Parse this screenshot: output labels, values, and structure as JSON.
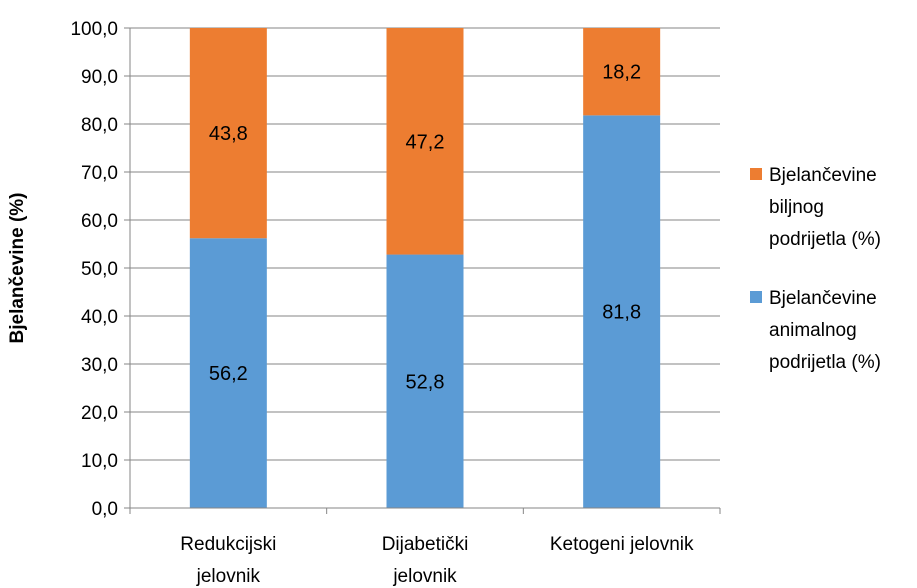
{
  "chart_data": {
    "type": "bar",
    "stacked": true,
    "title": "",
    "xlabel": "",
    "ylabel": "Bjelančevine (%)",
    "ylim": [
      0,
      100
    ],
    "yticks": [
      "0,0",
      "10,0",
      "20,0",
      "30,0",
      "40,0",
      "50,0",
      "60,0",
      "70,0",
      "80,0",
      "90,0",
      "100,0"
    ],
    "grid": true,
    "legend_position": "right",
    "categories": [
      [
        "Redukcijski",
        "jelovnik"
      ],
      [
        "Dijabetički",
        "jelovnik"
      ],
      [
        "Ketogeni jelovnik"
      ]
    ],
    "series": [
      {
        "name": [
          "Bjelančevine",
          "animalnog",
          "podrijetla (%)"
        ],
        "color": "#5B9BD5",
        "values": [
          56.2,
          52.8,
          81.8
        ],
        "labels": [
          "56,2",
          "52,8",
          "81,8"
        ]
      },
      {
        "name": [
          "Bjelančevine",
          "biljnog",
          "podrijetla (%)"
        ],
        "color": "#ED7D31",
        "values": [
          43.8,
          47.2,
          18.2
        ],
        "labels": [
          "43,8",
          "47,2",
          "18,2"
        ]
      }
    ],
    "legend_order": [
      1,
      0
    ]
  }
}
